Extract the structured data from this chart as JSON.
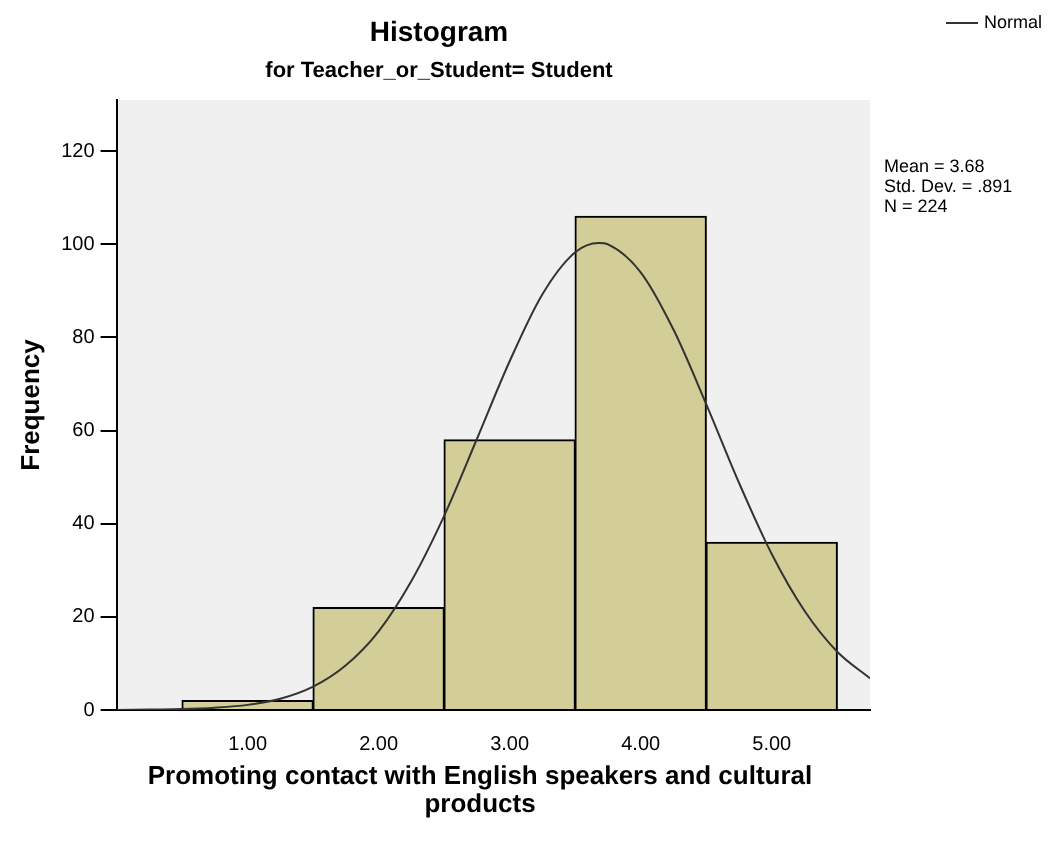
{
  "chart_data": {
    "type": "histogram",
    "title": "Histogram",
    "subtitle": "for Teacher_or_Student= Student",
    "xlabel": "Promoting contact with English speakers and cultural products",
    "ylabel": "Frequency",
    "bins": [
      0.5,
      1.5,
      2.5,
      3.5,
      4.5,
      5.5
    ],
    "values": [
      2,
      22,
      58,
      106,
      36
    ],
    "color": "#d3ce97",
    "series": [
      {
        "type": "line",
        "name": "Normal",
        "color": "#333333",
        "x": [
          0,
          0.25,
          0.5,
          0.75,
          1,
          1.25,
          1.5,
          1.75,
          2,
          2.25,
          2.5,
          2.75,
          3,
          3.25,
          3.5,
          3.68,
          3.75,
          4,
          4.25,
          4.5,
          4.75,
          5,
          5.25,
          5.5,
          5.75
        ],
        "values": [
          0,
          0.1,
          0.2,
          0.5,
          1.1,
          2.4,
          5,
          9.6,
          16.9,
          27.7,
          41.7,
          58.2,
          74.9,
          89.3,
          98.3,
          100.3,
          100,
          94,
          81.7,
          65.7,
          48.8,
          33.5,
          21.3,
          12.5,
          6.8
        ]
      }
    ],
    "xlim": [
      0,
      5.75
    ],
    "xticks": [
      {
        "value": 1,
        "label": "1.00"
      },
      {
        "value": 2,
        "label": "2.00"
      },
      {
        "value": 3,
        "label": "3.00"
      },
      {
        "value": 4,
        "label": "4.00"
      },
      {
        "value": 5,
        "label": "5.00"
      }
    ],
    "ylim": [
      0,
      131
    ],
    "yticks": [
      0,
      20,
      40,
      60,
      80,
      100,
      120
    ],
    "legend": "top right",
    "marker": "none",
    "annotations": [
      "Mean = 3.68",
      "Std. Dev. = .891",
      "N = 224"
    ]
  }
}
